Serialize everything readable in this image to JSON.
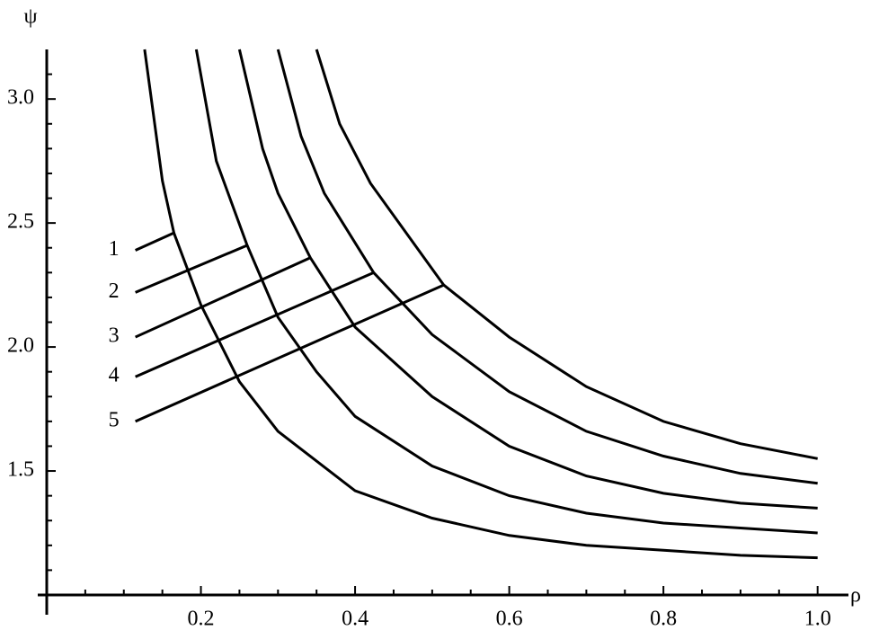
{
  "chart_data": {
    "type": "line",
    "xlabel": "ρ",
    "ylabel": "ψ",
    "xlim": [
      0,
      1.04
    ],
    "ylim": [
      1.0,
      3.2
    ],
    "xticks": [
      0.2,
      0.4,
      0.6,
      0.8,
      {
        "value": 1.0,
        "label": "1.0"
      }
    ],
    "yticks": [
      {
        "value": 1.5,
        "label": "1.5"
      },
      {
        "value": 2.0,
        "label": "2.0"
      },
      2.5,
      {
        "value": 3.0,
        "label": "3.0"
      }
    ],
    "xminorticks": [
      0.05,
      0.1,
      0.15,
      0.25,
      0.3,
      0.35,
      0.45,
      0.5,
      0.55,
      0.65,
      0.7,
      0.75,
      0.85,
      0.9,
      0.95
    ],
    "yminorticks": [
      1.1,
      1.2,
      1.3,
      1.4,
      1.6,
      1.7,
      1.8,
      1.9,
      2.1,
      2.2,
      2.3,
      2.4,
      2.6,
      2.7,
      2.8,
      2.9,
      3.1
    ],
    "color": "#000000",
    "series": [
      {
        "x": [
          0.127,
          0.15,
          0.165,
          0.2,
          0.25,
          0.3,
          0.4,
          0.5,
          0.6,
          0.7,
          0.8,
          0.9,
          1.0
        ],
        "values": [
          3.2,
          2.67,
          2.46,
          2.17,
          1.86,
          1.66,
          1.42,
          1.31,
          1.24,
          1.2,
          1.18,
          1.16,
          1.15
        ]
      },
      {
        "x": [
          0.194,
          0.22,
          0.26,
          0.3,
          0.35,
          0.4,
          0.5,
          0.6,
          0.7,
          0.8,
          0.9,
          1.0
        ],
        "values": [
          3.2,
          2.75,
          2.41,
          2.12,
          1.9,
          1.72,
          1.52,
          1.4,
          1.33,
          1.29,
          1.27,
          1.25
        ]
      },
      {
        "x": [
          0.25,
          0.28,
          0.3,
          0.342,
          0.4,
          0.5,
          0.6,
          0.7,
          0.8,
          0.9,
          1.0
        ],
        "values": [
          3.2,
          2.8,
          2.62,
          2.36,
          2.08,
          1.8,
          1.6,
          1.48,
          1.41,
          1.37,
          1.35
        ]
      },
      {
        "x": [
          0.3,
          0.33,
          0.36,
          0.424,
          0.5,
          0.6,
          0.7,
          0.8,
          0.9,
          1.0
        ],
        "values": [
          3.2,
          2.85,
          2.62,
          2.3,
          2.05,
          1.82,
          1.66,
          1.56,
          1.49,
          1.45
        ]
      },
      {
        "x": [
          0.35,
          0.38,
          0.42,
          0.515,
          0.6,
          0.7,
          0.8,
          0.9,
          1.0
        ],
        "values": [
          3.2,
          2.9,
          2.66,
          2.25,
          2.04,
          1.84,
          1.7,
          1.61,
          1.55
        ]
      }
    ],
    "annotations": [
      {
        "text": "1",
        "x": 0.115,
        "y": 2.39,
        "x_end": 0.165,
        "y_end": 2.46
      },
      {
        "text": "2",
        "x": 0.115,
        "y": 2.22,
        "x_end": 0.26,
        "y_end": 2.41
      },
      {
        "text": "3",
        "x": 0.115,
        "y": 2.04,
        "x_end": 0.342,
        "y_end": 2.36
      },
      {
        "text": "4",
        "x": 0.115,
        "y": 1.88,
        "x_end": 0.424,
        "y_end": 2.3
      },
      {
        "text": "5",
        "x": 0.115,
        "y": 1.7,
        "x_end": 0.515,
        "y_end": 2.25
      }
    ]
  }
}
